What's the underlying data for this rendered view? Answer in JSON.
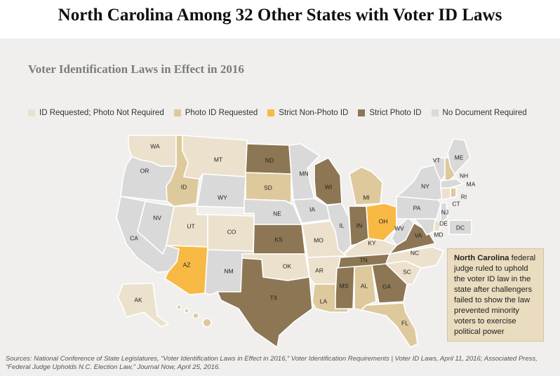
{
  "title": "North Carolina Among 32 Other States with Voter ID Laws",
  "subtitle": "Voter Identification Laws in Effect in 2016",
  "legend": [
    {
      "label": "ID Requested; Photo Not Required",
      "category": "id_requested",
      "color": "#ece1cd"
    },
    {
      "label": "Photo ID Requested",
      "category": "photo_requested",
      "color": "#ddc99c"
    },
    {
      "label": "Strict Non-Photo ID",
      "category": "strict_nonphoto",
      "color": "#f8b944"
    },
    {
      "label": "Strict Photo ID",
      "category": "strict_photo",
      "color": "#8c7654"
    },
    {
      "label": "No Document Required",
      "category": "none",
      "color": "#d9d9d9"
    }
  ],
  "states": {
    "WA": "id_requested",
    "OR": "none",
    "CA": "none",
    "NV": "none",
    "ID": "photo_requested",
    "MT": "id_requested",
    "WY": "none",
    "UT": "id_requested",
    "AZ": "strict_nonphoto",
    "CO": "id_requested",
    "NM": "none",
    "ND": "strict_photo",
    "SD": "photo_requested",
    "NE": "none",
    "KS": "strict_photo",
    "OK": "id_requested",
    "TX": "strict_photo",
    "MN": "none",
    "IA": "none",
    "MO": "id_requested",
    "AR": "id_requested",
    "LA": "photo_requested",
    "WI": "strict_photo",
    "IL": "none",
    "MS": "strict_photo",
    "MI": "photo_requested",
    "IN": "strict_photo",
    "KY": "id_requested",
    "TN": "strict_photo",
    "AL": "photo_requested",
    "OH": "strict_nonphoto",
    "GA": "strict_photo",
    "FL": "photo_requested",
    "SC": "id_requested",
    "NC": "id_requested",
    "VA": "strict_photo",
    "WV": "none",
    "PA": "none",
    "NY": "none",
    "VT": "none",
    "NH": "photo_requested",
    "ME": "none",
    "MA": "none",
    "RI": "photo_requested",
    "CT": "id_requested",
    "NJ": "none",
    "DE": "id_requested",
    "MD": "none",
    "DC": "none",
    "AK": "id_requested",
    "HI": "photo_requested"
  },
  "callout": {
    "state": "North Carolina",
    "text": " federal judge ruled to uphold the voter ID law in the state after challengers failed to show the law prevented minority voters to exercise political power"
  },
  "source": "Sources: National Conference of State Legislatures, “Voter Identification Laws in Effect in 2016,” Voter Identification Requirements | Voter ID Laws, April 11, 2016; Associated Press, “Federal Judge Upholds N.C. Election Law,” Journal Now, April 25, 2016."
}
